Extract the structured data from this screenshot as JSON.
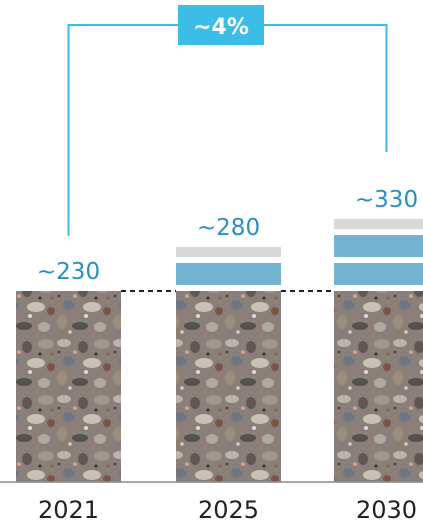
{
  "chart_data": {
    "type": "bar",
    "categories": [
      "2021",
      "2025",
      "2030"
    ],
    "values": [
      230,
      280,
      330
    ],
    "value_labels": [
      "~230",
      "~280",
      "~330"
    ],
    "growth_label": "~4%",
    "colors": {
      "bracket": "#3bbde8",
      "growth_box": "#3bbde8",
      "value_text": "#2a8fbf",
      "increment_blue": "#74b3d2",
      "increment_gray": "#d9d9d9",
      "rock_base": "#8a8079",
      "axis": "#888888"
    },
    "bar_fill": "rocks-texture",
    "grid": false,
    "legend": "none"
  }
}
